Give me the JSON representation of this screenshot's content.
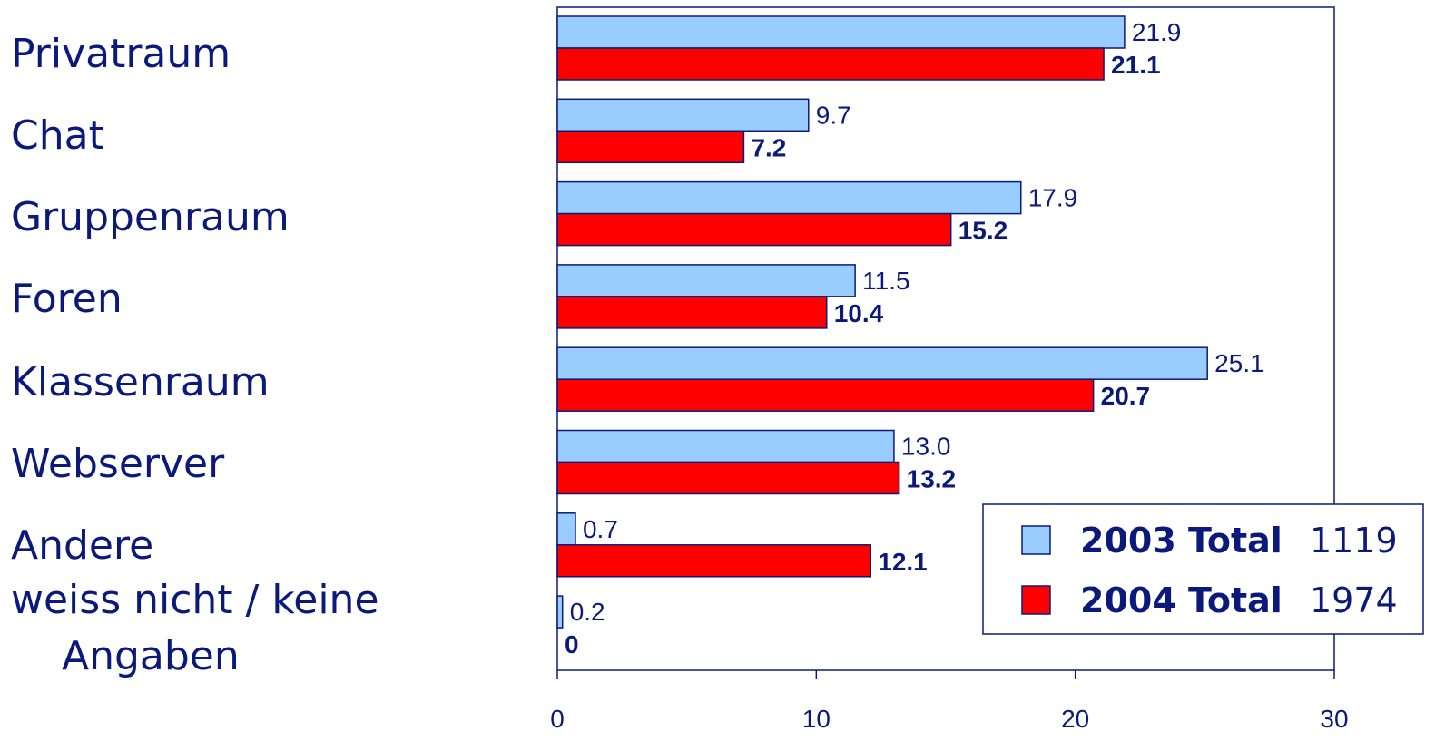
{
  "chart_data": {
    "type": "bar",
    "orientation": "horizontal",
    "categories": [
      [
        "Privatraum"
      ],
      [
        "Chat"
      ],
      [
        "Gruppenraum"
      ],
      [
        "Foren"
      ],
      [
        "Klassenraum"
      ],
      [
        "Webserver"
      ],
      [
        "Andere"
      ],
      [
        "weiss nicht / keine",
        "Angaben"
      ]
    ],
    "series": [
      {
        "name": "2003 Total",
        "n": "1119",
        "color": "#99ccff",
        "values": [
          21.9,
          9.7,
          17.9,
          11.5,
          25.1,
          13.0,
          0.7,
          0.2
        ],
        "labels": [
          "21.9",
          "9.7",
          "17.9",
          "11.5",
          "25.1",
          "13.0",
          "0.7",
          "0.2"
        ]
      },
      {
        "name": "2004 Total",
        "n": "1974",
        "color": "#ff0000",
        "values": [
          21.1,
          7.2,
          15.2,
          10.4,
          20.7,
          13.2,
          12.1,
          0
        ],
        "labels": [
          "21.1",
          "7.2",
          "15.2",
          "10.4",
          "20.7",
          "13.2",
          "12.1",
          "0"
        ]
      }
    ],
    "xlim": [
      0,
      30
    ],
    "xticks": [
      0,
      10,
      20,
      30
    ],
    "xtick_labels": [
      "0",
      "10",
      "20",
      "30"
    ],
    "grid": false,
    "legend_position": "bottom-right",
    "title": "",
    "xlabel": "",
    "ylabel": ""
  }
}
